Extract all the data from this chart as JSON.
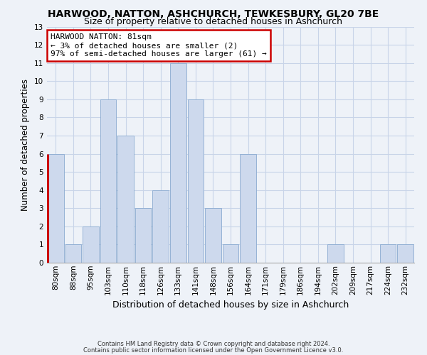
{
  "title": "HARWOOD, NATTON, ASHCHURCH, TEWKESBURY, GL20 7BE",
  "subtitle": "Size of property relative to detached houses in Ashchurch",
  "xlabel": "Distribution of detached houses by size in Ashchurch",
  "ylabel": "Number of detached properties",
  "footnote1": "Contains HM Land Registry data © Crown copyright and database right 2024.",
  "footnote2": "Contains public sector information licensed under the Open Government Licence v3.0.",
  "bin_labels": [
    "80sqm",
    "88sqm",
    "95sqm",
    "103sqm",
    "110sqm",
    "118sqm",
    "126sqm",
    "133sqm",
    "141sqm",
    "148sqm",
    "156sqm",
    "164sqm",
    "171sqm",
    "179sqm",
    "186sqm",
    "194sqm",
    "202sqm",
    "209sqm",
    "217sqm",
    "224sqm",
    "232sqm"
  ],
  "bar_heights": [
    6,
    1,
    2,
    9,
    7,
    3,
    4,
    11,
    9,
    3,
    1,
    6,
    0,
    0,
    0,
    0,
    1,
    0,
    0,
    1,
    1
  ],
  "bar_color": "#cdd9ed",
  "bar_edge_color": "#8aaad0",
  "highlight_bar_index": 0,
  "highlight_left_color": "#cc0000",
  "ylim": [
    0,
    13
  ],
  "yticks": [
    0,
    1,
    2,
    3,
    4,
    5,
    6,
    7,
    8,
    9,
    10,
    11,
    12,
    13
  ],
  "annotation_text": "HARWOOD NATTON: 81sqm\n← 3% of detached houses are smaller (2)\n97% of semi-detached houses are larger (61) →",
  "annotation_box_color": "#ffffff",
  "annotation_box_edge_color": "#cc0000",
  "grid_color": "#c8d4e8",
  "background_color": "#eef2f8",
  "title_fontsize": 10,
  "subtitle_fontsize": 9,
  "tick_fontsize": 7.5,
  "ylabel_fontsize": 8.5,
  "xlabel_fontsize": 9,
  "annotation_fontsize": 8,
  "footnote_fontsize": 6
}
